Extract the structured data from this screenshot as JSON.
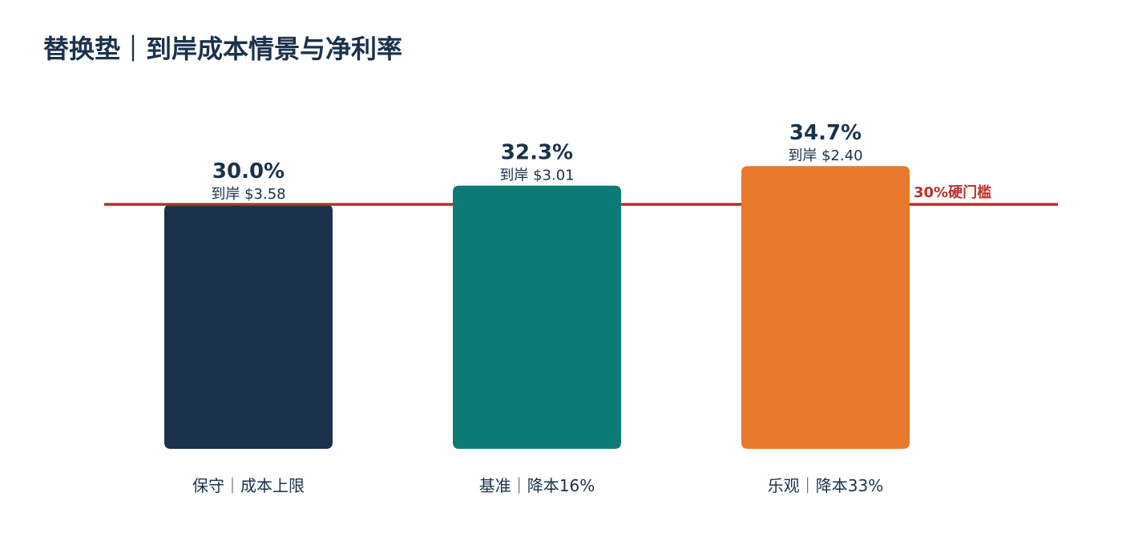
{
  "chart_data": {
    "type": "bar",
    "title": "替换垫｜到岸成本情景与净利率",
    "xlabel": "",
    "ylabel": "",
    "categories": [
      "保守｜成本上限",
      "基准｜降本16%",
      "乐观｜降本33%"
    ],
    "values": [
      30.0,
      32.3,
      34.7
    ],
    "value_labels": [
      "30.0%",
      "32.3%",
      "34.7%"
    ],
    "sub_labels": [
      "到岸 $3.58",
      "到岸 $3.01",
      "到岸 $2.40"
    ],
    "bar_colors": [
      "#1b324c",
      "#0d7b75",
      "#e8792b"
    ],
    "threshold": {
      "value": 30,
      "label": "30%硬门槛",
      "color": "#b8312a"
    },
    "text_color": "#1b324c",
    "grid": false,
    "legend": "none"
  }
}
